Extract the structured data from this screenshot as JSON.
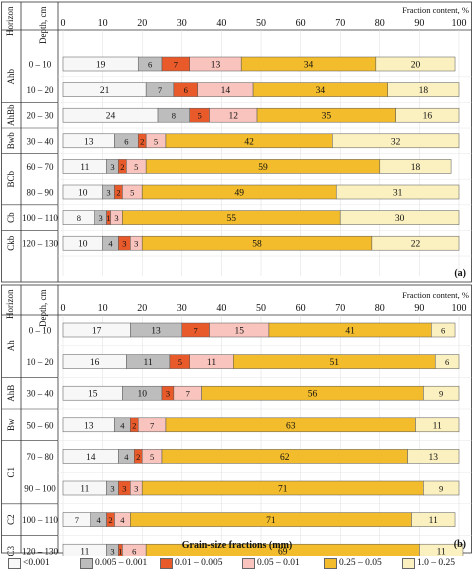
{
  "colors": [
    "#f7f7f7",
    "#bdbdbd",
    "#e85a2a",
    "#f8c4bd",
    "#f3bc2c",
    "#fbf0c0"
  ],
  "legend": {
    "title": "Grain-size fractions (mm)",
    "items": [
      "<0.001",
      "0.005 – 0.001",
      "0.01 – 0.005",
      "0.05 – 0.01",
      "0.25 – 0.05",
      "1.0 – 0.25"
    ]
  },
  "chart_data": [
    {
      "type": "bar",
      "stacked": true,
      "orientation": "horizontal",
      "panel": "(a)",
      "col_headers": {
        "horizon": "Horizon",
        "depth": "Depth, cm"
      },
      "xlabel": "Fraction content, %",
      "xlim": [
        0,
        100
      ],
      "xticks": [
        0,
        10,
        20,
        30,
        40,
        50,
        60,
        70,
        80,
        90,
        100
      ],
      "rows": [
        {
          "horizon": "Ahb",
          "depth": "0 – 10",
          "values": [
            19,
            6,
            7,
            13,
            34,
            20
          ]
        },
        {
          "horizon": "Ahb",
          "depth": "10 – 20",
          "values": [
            21,
            7,
            6,
            14,
            34,
            18
          ]
        },
        {
          "horizon": "AhBb",
          "depth": "20 – 30",
          "values": [
            24,
            8,
            5,
            12,
            35,
            16
          ]
        },
        {
          "horizon": "Bwb",
          "depth": "30 – 40",
          "values": [
            13,
            6,
            2,
            5,
            42,
            32
          ]
        },
        {
          "horizon": "BCb",
          "depth": "60 – 70",
          "values": [
            11,
            3,
            2,
            5,
            59,
            18
          ]
        },
        {
          "horizon": "BCb",
          "depth": "80 – 90",
          "values": [
            10,
            3,
            2,
            5,
            49,
            31
          ]
        },
        {
          "horizon": "Cb",
          "depth": "100 – 110",
          "values": [
            8,
            3,
            1,
            3,
            55,
            30
          ]
        },
        {
          "horizon": "Ckb",
          "depth": "120 – 130",
          "values": [
            10,
            4,
            3,
            3,
            58,
            22
          ]
        }
      ]
    },
    {
      "type": "bar",
      "stacked": true,
      "orientation": "horizontal",
      "panel": "(b)",
      "col_headers": {
        "horizon": "Horizon",
        "depth": "Depth, cm"
      },
      "xlabel": "Fraction content, %",
      "xlim": [
        0,
        100
      ],
      "xticks": [
        0,
        10,
        20,
        30,
        40,
        50,
        60,
        70,
        80,
        90,
        100
      ],
      "rows": [
        {
          "horizon": "Ah",
          "depth": "0 – 10",
          "values": [
            17,
            13,
            7,
            15,
            41,
            6
          ]
        },
        {
          "horizon": "Ah",
          "depth": "10 – 20",
          "values": [
            16,
            11,
            5,
            11,
            51,
            6
          ]
        },
        {
          "horizon": "AhB",
          "depth": "30 – 40",
          "values": [
            15,
            10,
            3,
            7,
            56,
            9
          ]
        },
        {
          "horizon": "Bw",
          "depth": "50 – 60",
          "values": [
            13,
            4,
            2,
            7,
            63,
            11
          ]
        },
        {
          "horizon": "C1",
          "depth": "70 – 80",
          "values": [
            14,
            4,
            2,
            5,
            62,
            13
          ]
        },
        {
          "horizon": "C1",
          "depth": "90 – 100",
          "values": [
            11,
            3,
            3,
            3,
            71,
            9
          ]
        },
        {
          "horizon": "C2",
          "depth": "100 – 110",
          "values": [
            7,
            4,
            2,
            4,
            71,
            11
          ]
        },
        {
          "horizon": "C3",
          "depth": "120 – 130",
          "values": [
            11,
            3,
            1,
            6,
            69,
            11
          ]
        }
      ]
    }
  ]
}
